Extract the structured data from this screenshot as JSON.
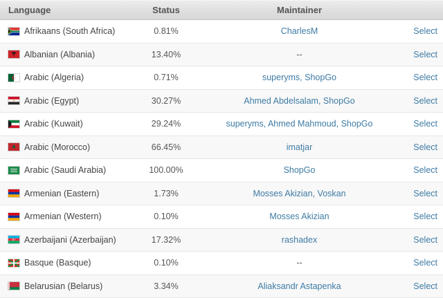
{
  "header": {
    "language": "Language",
    "status": "Status",
    "maintainer": "Maintainer",
    "action": ""
  },
  "no_maintainer": "--",
  "colors": {
    "link": "#3e7ba4",
    "header_text": "#555555",
    "cell_text": "#444444",
    "row_alt_background": "#f8f8f8",
    "header_background": "#e0e0e0",
    "row_border": "#e6e6e6"
  },
  "rows": [
    {
      "language": "Afrikaans (South Africa)",
      "flag": "flag-south-africa",
      "status": "0.81%",
      "maintainers": [
        "CharlesM"
      ],
      "action": "Select"
    },
    {
      "language": "Albanian (Albania)",
      "flag": "flag-albania",
      "status": "13.40%",
      "maintainers": [],
      "action": "Select"
    },
    {
      "language": "Arabic (Algeria)",
      "flag": "flag-algeria",
      "status": "0.71%",
      "maintainers": [
        "superyms",
        "ShopGo"
      ],
      "action": "Select"
    },
    {
      "language": "Arabic (Egypt)",
      "flag": "flag-egypt",
      "status": "30.27%",
      "maintainers": [
        "Ahmed Abdelsalam",
        "ShopGo"
      ],
      "action": "Select"
    },
    {
      "language": "Arabic (Kuwait)",
      "flag": "flag-kuwait",
      "status": "29.24%",
      "maintainers": [
        "superyms",
        "Ahmed Mahmoud",
        "ShopGo"
      ],
      "action": "Select"
    },
    {
      "language": "Arabic (Morocco)",
      "flag": "flag-morocco",
      "status": "66.45%",
      "maintainers": [
        "imatjar"
      ],
      "action": "Select"
    },
    {
      "language": "Arabic (Saudi Arabia)",
      "flag": "flag-saudi-arabia",
      "status": "100.00%",
      "maintainers": [
        "ShopGo"
      ],
      "action": "Select"
    },
    {
      "language": "Armenian (Eastern)",
      "flag": "flag-armenia",
      "status": "1.73%",
      "maintainers": [
        "Mosses Akizian",
        "Voskan"
      ],
      "action": "Select"
    },
    {
      "language": "Armenian (Western)",
      "flag": "flag-armenia",
      "status": "0.10%",
      "maintainers": [
        "Mosses Akizian"
      ],
      "action": "Select"
    },
    {
      "language": "Azerbaijani (Azerbaijan)",
      "flag": "flag-azerbaijan",
      "status": "17.32%",
      "maintainers": [
        "rashadex"
      ],
      "action": "Select"
    },
    {
      "language": "Basque (Basque)",
      "flag": "flag-basque",
      "status": "0.10%",
      "maintainers": [],
      "action": "Select"
    },
    {
      "language": "Belarusian (Belarus)",
      "flag": "flag-belarus",
      "status": "3.34%",
      "maintainers": [
        "Aliaksandr Astapenka"
      ],
      "action": "Select"
    }
  ]
}
